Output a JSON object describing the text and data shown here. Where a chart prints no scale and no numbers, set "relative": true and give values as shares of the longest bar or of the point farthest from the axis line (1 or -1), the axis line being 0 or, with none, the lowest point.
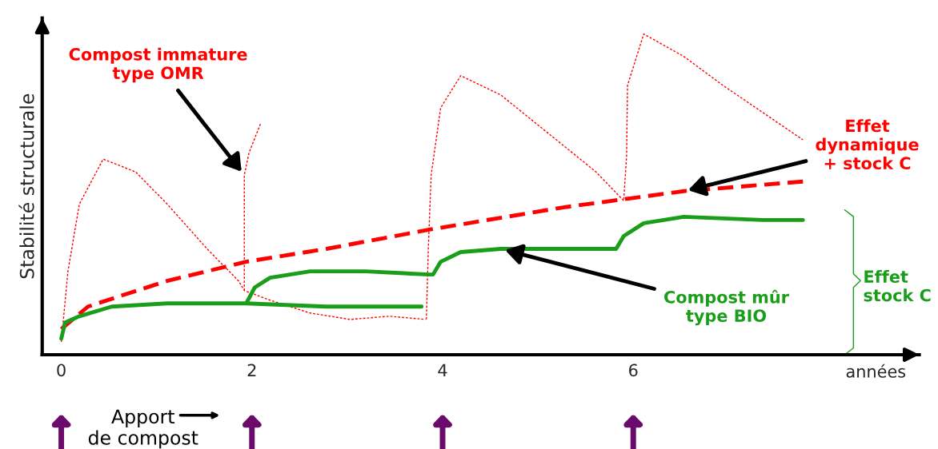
{
  "chart_data": {
    "type": "line",
    "relative": true,
    "ylabel": "Stabilité structurale",
    "xlabel": "années",
    "xlim": [
      -0.2,
      9.0
    ],
    "xticks": [
      0,
      2,
      4,
      6
    ],
    "grid": false,
    "series": [
      {
        "name": "Compost immature\ntype OMR",
        "color": "#ff0000",
        "line_style": "dotted",
        "x": [
          0,
          0.07,
          0.19,
          0.44,
          0.78,
          1.11,
          1.53,
          1.86,
          1.92,
          2.19,
          2.61,
          3.03,
          3.44,
          3.82,
          null,
          1.92,
          1.92,
          1.97,
          2.09,
          null,
          3.83,
          3.85,
          3.88,
          3.98,
          4.19,
          4.61,
          5.11,
          5.61,
          5.9,
          5.93,
          5.94,
          6.11,
          6.53,
          6.94,
          7.78
        ],
        "values": [
          0.04,
          0.26,
          0.47,
          0.61,
          0.57,
          0.47,
          0.33,
          0.23,
          0.2,
          0.17,
          0.13,
          0.11,
          0.12,
          0.11,
          null,
          0.2,
          0.56,
          0.63,
          0.72,
          null,
          0.11,
          0.33,
          0.56,
          0.77,
          0.87,
          0.81,
          0.69,
          0.57,
          0.48,
          0.62,
          0.84,
          1.0,
          0.93,
          0.84,
          0.67
        ]
      },
      {
        "name": "Effet\ndynamique\n+ stock C",
        "color": "#ff0000",
        "line_style": "dashed",
        "x": [
          0,
          0.28,
          0.69,
          1.11,
          1.94,
          2.78,
          3.86,
          5.28,
          6.53,
          7.78
        ],
        "values": [
          0.08,
          0.15,
          0.19,
          0.23,
          0.29,
          0.33,
          0.39,
          0.46,
          0.51,
          0.54
        ]
      },
      {
        "name": "Compost mûr\ntype BIO",
        "color": "#1a9e1a",
        "line_style": "solid",
        "x": [
          0,
          0.04,
          0.19,
          0.53,
          1.11,
          1.94,
          2.78,
          3.78,
          null,
          1.94,
          2.03,
          2.19,
          2.61,
          3.19,
          3.86,
          3.9,
          3.98,
          4.19,
          4.61,
          5.28,
          5.82,
          5.9,
          6.11,
          6.53,
          7.36,
          7.78
        ],
        "values": [
          0.05,
          0.1,
          0.12,
          0.15,
          0.16,
          0.16,
          0.15,
          0.15,
          null,
          0.16,
          0.21,
          0.24,
          0.26,
          0.26,
          0.25,
          0.25,
          0.29,
          0.32,
          0.33,
          0.33,
          0.33,
          0.37,
          0.41,
          0.43,
          0.42,
          0.42
        ]
      }
    ],
    "annotations": [
      "Effet\nstock C",
      "Apport\nde compost"
    ]
  }
}
